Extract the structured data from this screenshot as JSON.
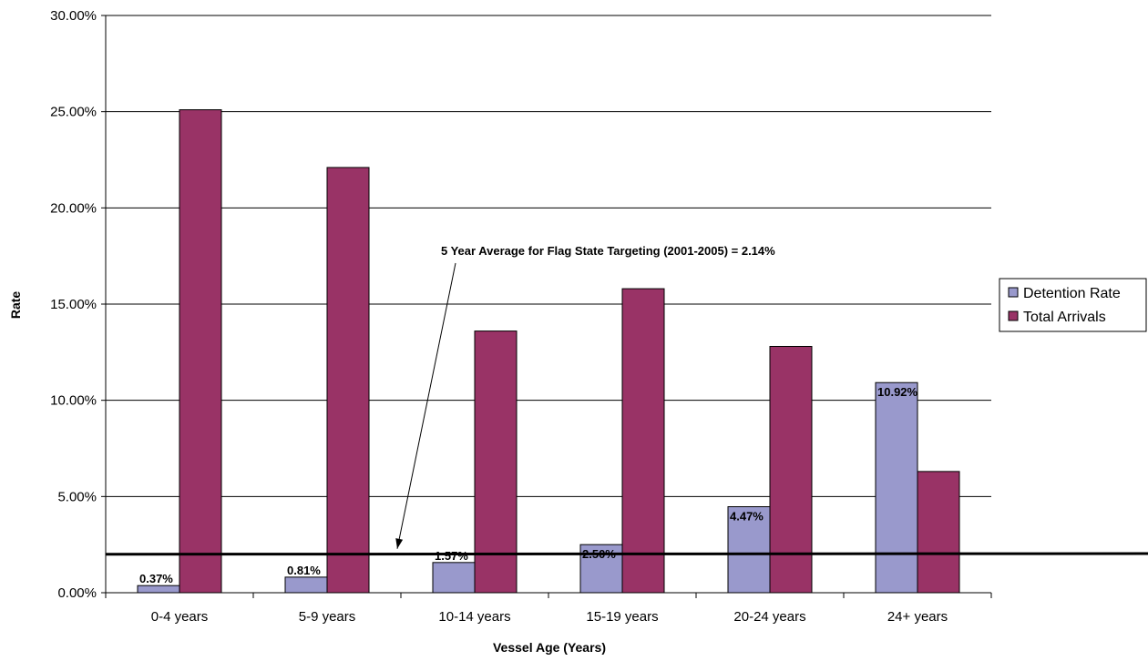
{
  "chart_data": {
    "type": "bar",
    "title": "",
    "xlabel": "Vessel Age (Years)",
    "ylabel": "Rate",
    "categories": [
      "0-4 years",
      "5-9 years",
      "10-14 years",
      "15-19 years",
      "20-24 years",
      "24+ years"
    ],
    "series": [
      {
        "name": "Detention Rate",
        "values": [
          0.37,
          0.81,
          1.57,
          2.5,
          4.47,
          10.92
        ],
        "labels": [
          "0.37%",
          "0.81%",
          "1.57%",
          "2.50%",
          "4.47%",
          "10.92%"
        ],
        "color": "#9999cc"
      },
      {
        "name": "Total Arrivals",
        "values": [
          25.1,
          22.1,
          13.6,
          15.8,
          12.8,
          6.3
        ],
        "color": "#993366"
      }
    ],
    "ylim": [
      0,
      30
    ],
    "yticks": [
      "0.00%",
      "5.00%",
      "10.00%",
      "15.00%",
      "20.00%",
      "25.00%",
      "30.00%"
    ],
    "grid": true,
    "legend_position": "right",
    "reference_line": {
      "value": 2.0,
      "annotation": "5 Year Average for Flag State Targeting (2001-2005) = 2.14%"
    }
  }
}
